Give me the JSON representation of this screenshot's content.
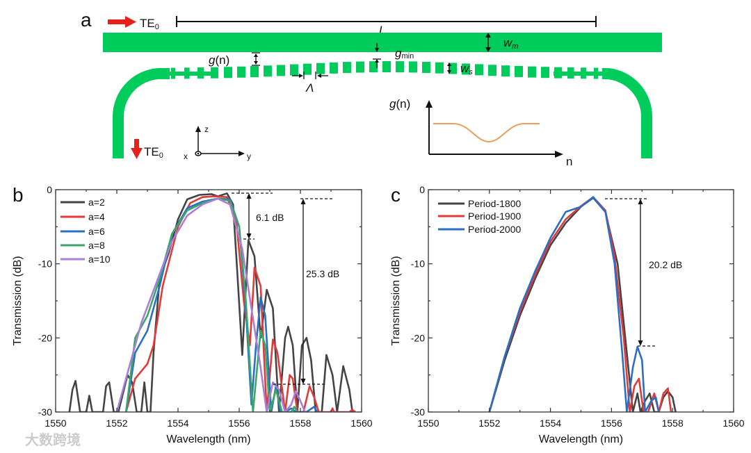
{
  "panel_a": {
    "label": "a",
    "input_mode": "TE",
    "input_mode_sub": "0",
    "output_mode": "TE",
    "output_mode_sub": "0",
    "length_label": "L",
    "main_width_label": "w",
    "main_width_sub": "m",
    "gap_label": "g",
    "gap_label_suffix": "(n)",
    "gap_min_label": "g",
    "gap_min_sub": "min",
    "seg_width_label": "w",
    "seg_width_sub": "s",
    "period_label": "Λ",
    "axes": {
      "z": "z",
      "x": "x",
      "y": "y"
    },
    "inset": {
      "ylabel": "g",
      "ylabel_suffix": "(n)",
      "xlabel": "n"
    },
    "colors": {
      "waveguide": "#00cc5c",
      "arrow": "#e8201a",
      "profile": "#e8a060"
    }
  },
  "watermark": "大数跨境",
  "chart_data": [
    {
      "panel": "b",
      "type": "line",
      "xlabel": "Wavelength (nm)",
      "ylabel": "Transmission (dB)",
      "xlim": [
        1550,
        1560
      ],
      "ylim": [
        -30,
        0
      ],
      "xticks": [
        "1550",
        "1552",
        "1554",
        "1556",
        "1558",
        "1560"
      ],
      "yticks": [
        "0",
        "-10",
        "-20",
        "-30"
      ],
      "legend_position": "top-left",
      "annotations": [
        "6.1 dB",
        "25.3 dB"
      ],
      "series": [
        {
          "name": "a=2",
          "color": "#444444",
          "x": [
            1550.45,
            1550.55,
            1550.65,
            1550.8,
            1551.0,
            1551.1,
            1551.2,
            1551.55,
            1551.65,
            1551.75,
            1551.9,
            1552.05,
            1552.35,
            1552.5,
            1552.65,
            1552.8,
            1552.9,
            1553.0,
            1553.1,
            1553.2,
            1553.4,
            1553.7,
            1554.0,
            1554.3,
            1554.7,
            1555.1,
            1555.3,
            1555.6,
            1555.8,
            1555.95,
            1556.1,
            1556.3,
            1556.5,
            1556.7,
            1556.9,
            1557.1,
            1557.3,
            1557.5,
            1557.6,
            1557.75,
            1557.9,
            1558.05,
            1558.2,
            1558.35,
            1558.5,
            1558.7,
            1558.85,
            1559.05,
            1559.2,
            1559.4,
            1559.6,
            1559.7
          ],
          "y": [
            -30,
            -27,
            -25.8,
            -30,
            -30,
            -27.8,
            -30,
            -30,
            -26.5,
            -26,
            -30,
            -30,
            -25,
            -26,
            -30,
            -30,
            -26,
            -30,
            -30,
            -22,
            -12,
            -8.5,
            -4,
            -1.3,
            -0.7,
            -0.6,
            -0.9,
            -0.5,
            -2,
            -12,
            -22.3,
            -6.8,
            -9,
            -20,
            -13.5,
            -16,
            -30,
            -20,
            -18.5,
            -21,
            -30,
            -21,
            -20,
            -23,
            -30,
            -30,
            -22.3,
            -25,
            -30,
            -23.8,
            -27,
            -30
          ]
        },
        {
          "name": "a=4",
          "color": "#e03a3a",
          "x": [
            1552.3,
            1552.6,
            1553.0,
            1553.2,
            1553.5,
            1554.0,
            1554.4,
            1554.8,
            1555.2,
            1555.6,
            1555.9,
            1556.15,
            1556.35,
            1556.5,
            1556.7,
            1556.9,
            1557.1,
            1557.25,
            1557.5,
            1557.65,
            1557.75,
            1557.9,
            1558.1,
            1558.3,
            1558.45,
            1558.6,
            1559.0,
            1559.05,
            1559.1,
            1559.6,
            1559.7,
            1559.8
          ],
          "y": [
            -30,
            -25.5,
            -23.5,
            -21,
            -13,
            -5,
            -1.8,
            -1,
            -0.9,
            -1,
            -4,
            -15,
            -21,
            -10.5,
            -13,
            -30,
            -20.2,
            -22,
            -30,
            -25,
            -25.5,
            -30,
            -30,
            -26.5,
            -28,
            -30,
            -30,
            -29.5,
            -30,
            -30,
            -29.7,
            -30
          ]
        },
        {
          "name": "a=6",
          "color": "#2a6fc4",
          "x": [
            1552.3,
            1552.6,
            1553.0,
            1553.4,
            1553.8,
            1554.3,
            1554.8,
            1555.3,
            1555.7,
            1556.0,
            1556.2,
            1556.4,
            1556.55,
            1556.7,
            1556.85,
            1557.05,
            1557.2,
            1557.35,
            1557.5,
            1557.7,
            1557.85,
            1558.2,
            1558.45,
            1558.55
          ],
          "y": [
            -30,
            -22,
            -19,
            -13,
            -6,
            -2.5,
            -1.6,
            -1.2,
            -1.3,
            -5,
            -15,
            -29,
            -21,
            -14.5,
            -17,
            -30,
            -26.5,
            -30,
            -30,
            -29.5,
            -30,
            -30,
            -29.3,
            -30
          ]
        },
        {
          "name": "a=8",
          "color": "#3aa66a",
          "x": [
            1552.3,
            1552.6,
            1553.0,
            1553.4,
            1553.8,
            1554.3,
            1554.8,
            1555.3,
            1555.7,
            1556.0,
            1556.2,
            1556.45,
            1556.7,
            1556.85,
            1557.0,
            1557.2,
            1557.4,
            1557.7,
            1557.8,
            1557.9
          ],
          "y": [
            -30,
            -20,
            -17,
            -12,
            -6,
            -2.8,
            -1.8,
            -1.2,
            -1.5,
            -5,
            -14,
            -30,
            -19,
            -21,
            -30,
            -27,
            -30,
            -30,
            -29.3,
            -30
          ]
        },
        {
          "name": "a=10",
          "color": "#a97fd6",
          "x": [
            1552.0,
            1552.4,
            1552.8,
            1553.3,
            1553.8,
            1554.3,
            1554.8,
            1555.3,
            1555.7,
            1556.1,
            1556.4,
            1556.7,
            1556.9,
            1557.1,
            1557.3,
            1557.5,
            1557.7,
            1557.85,
            1558.0,
            1558.15
          ],
          "y": [
            -30,
            -24,
            -18,
            -12.5,
            -7,
            -3.5,
            -2,
            -1.2,
            -2,
            -8,
            -16,
            -24,
            -30,
            -26,
            -27,
            -30,
            -29,
            -27.2,
            -28.5,
            -30
          ]
        }
      ]
    },
    {
      "panel": "c",
      "type": "line",
      "xlabel": "Wavelength (nm)",
      "ylabel": "Transmission (dB)",
      "xlim": [
        1550,
        1560
      ],
      "ylim": [
        -30,
        0
      ],
      "xticks": [
        "1550",
        "1552",
        "1554",
        "1556",
        "1558",
        "1560"
      ],
      "yticks": [
        "0",
        "-10",
        "-20",
        "-30"
      ],
      "legend_position": "top-left",
      "annotations": [
        "20.2 dB"
      ],
      "series": [
        {
          "name": "Period-1800",
          "color": "#444444",
          "x": [
            1552.0,
            1552.5,
            1553.0,
            1553.5,
            1554.0,
            1554.5,
            1555.0,
            1555.4,
            1555.8,
            1556.2,
            1556.5,
            1556.7,
            1556.85,
            1556.95,
            1557.1,
            1557.25,
            1557.4,
            1557.55,
            1557.7,
            1557.85,
            1558.0,
            1558.1
          ],
          "y": [
            -30,
            -23,
            -17,
            -12,
            -7.5,
            -4.5,
            -2.3,
            -1.1,
            -3,
            -10,
            -22,
            -30,
            -27.5,
            -30,
            -28.5,
            -27.5,
            -30,
            -30,
            -28,
            -27.2,
            -28,
            -30
          ]
        },
        {
          "name": "Period-1900",
          "color": "#e03a3a",
          "x": [
            1552.0,
            1552.5,
            1553.0,
            1553.5,
            1554.0,
            1554.5,
            1555.0,
            1555.4,
            1555.8,
            1556.1,
            1556.4,
            1556.6,
            1556.75,
            1556.9,
            1557.05,
            1557.2,
            1557.4,
            1557.55,
            1557.7,
            1557.85,
            1557.95
          ],
          "y": [
            -30,
            -22.5,
            -16.5,
            -11.5,
            -7,
            -4,
            -2.2,
            -1,
            -2.8,
            -9,
            -20,
            -30,
            -26.5,
            -25.5,
            -30,
            -30,
            -27.5,
            -30,
            -27.5,
            -26.8,
            -30
          ]
        },
        {
          "name": "Period-2000",
          "color": "#2a6fc4",
          "x": [
            1552.0,
            1552.5,
            1553.0,
            1553.5,
            1554.0,
            1554.5,
            1555.0,
            1555.4,
            1555.8,
            1556.1,
            1556.35,
            1556.5,
            1556.7,
            1556.85,
            1557.0,
            1557.1,
            1557.3,
            1557.45,
            1557.55
          ],
          "y": [
            -30,
            -22.5,
            -16,
            -11,
            -6.5,
            -3,
            -2.3,
            -1,
            -3,
            -10,
            -22,
            -30,
            -24,
            -21.2,
            -23,
            -30,
            -28.5,
            -28,
            -30
          ]
        }
      ]
    }
  ]
}
